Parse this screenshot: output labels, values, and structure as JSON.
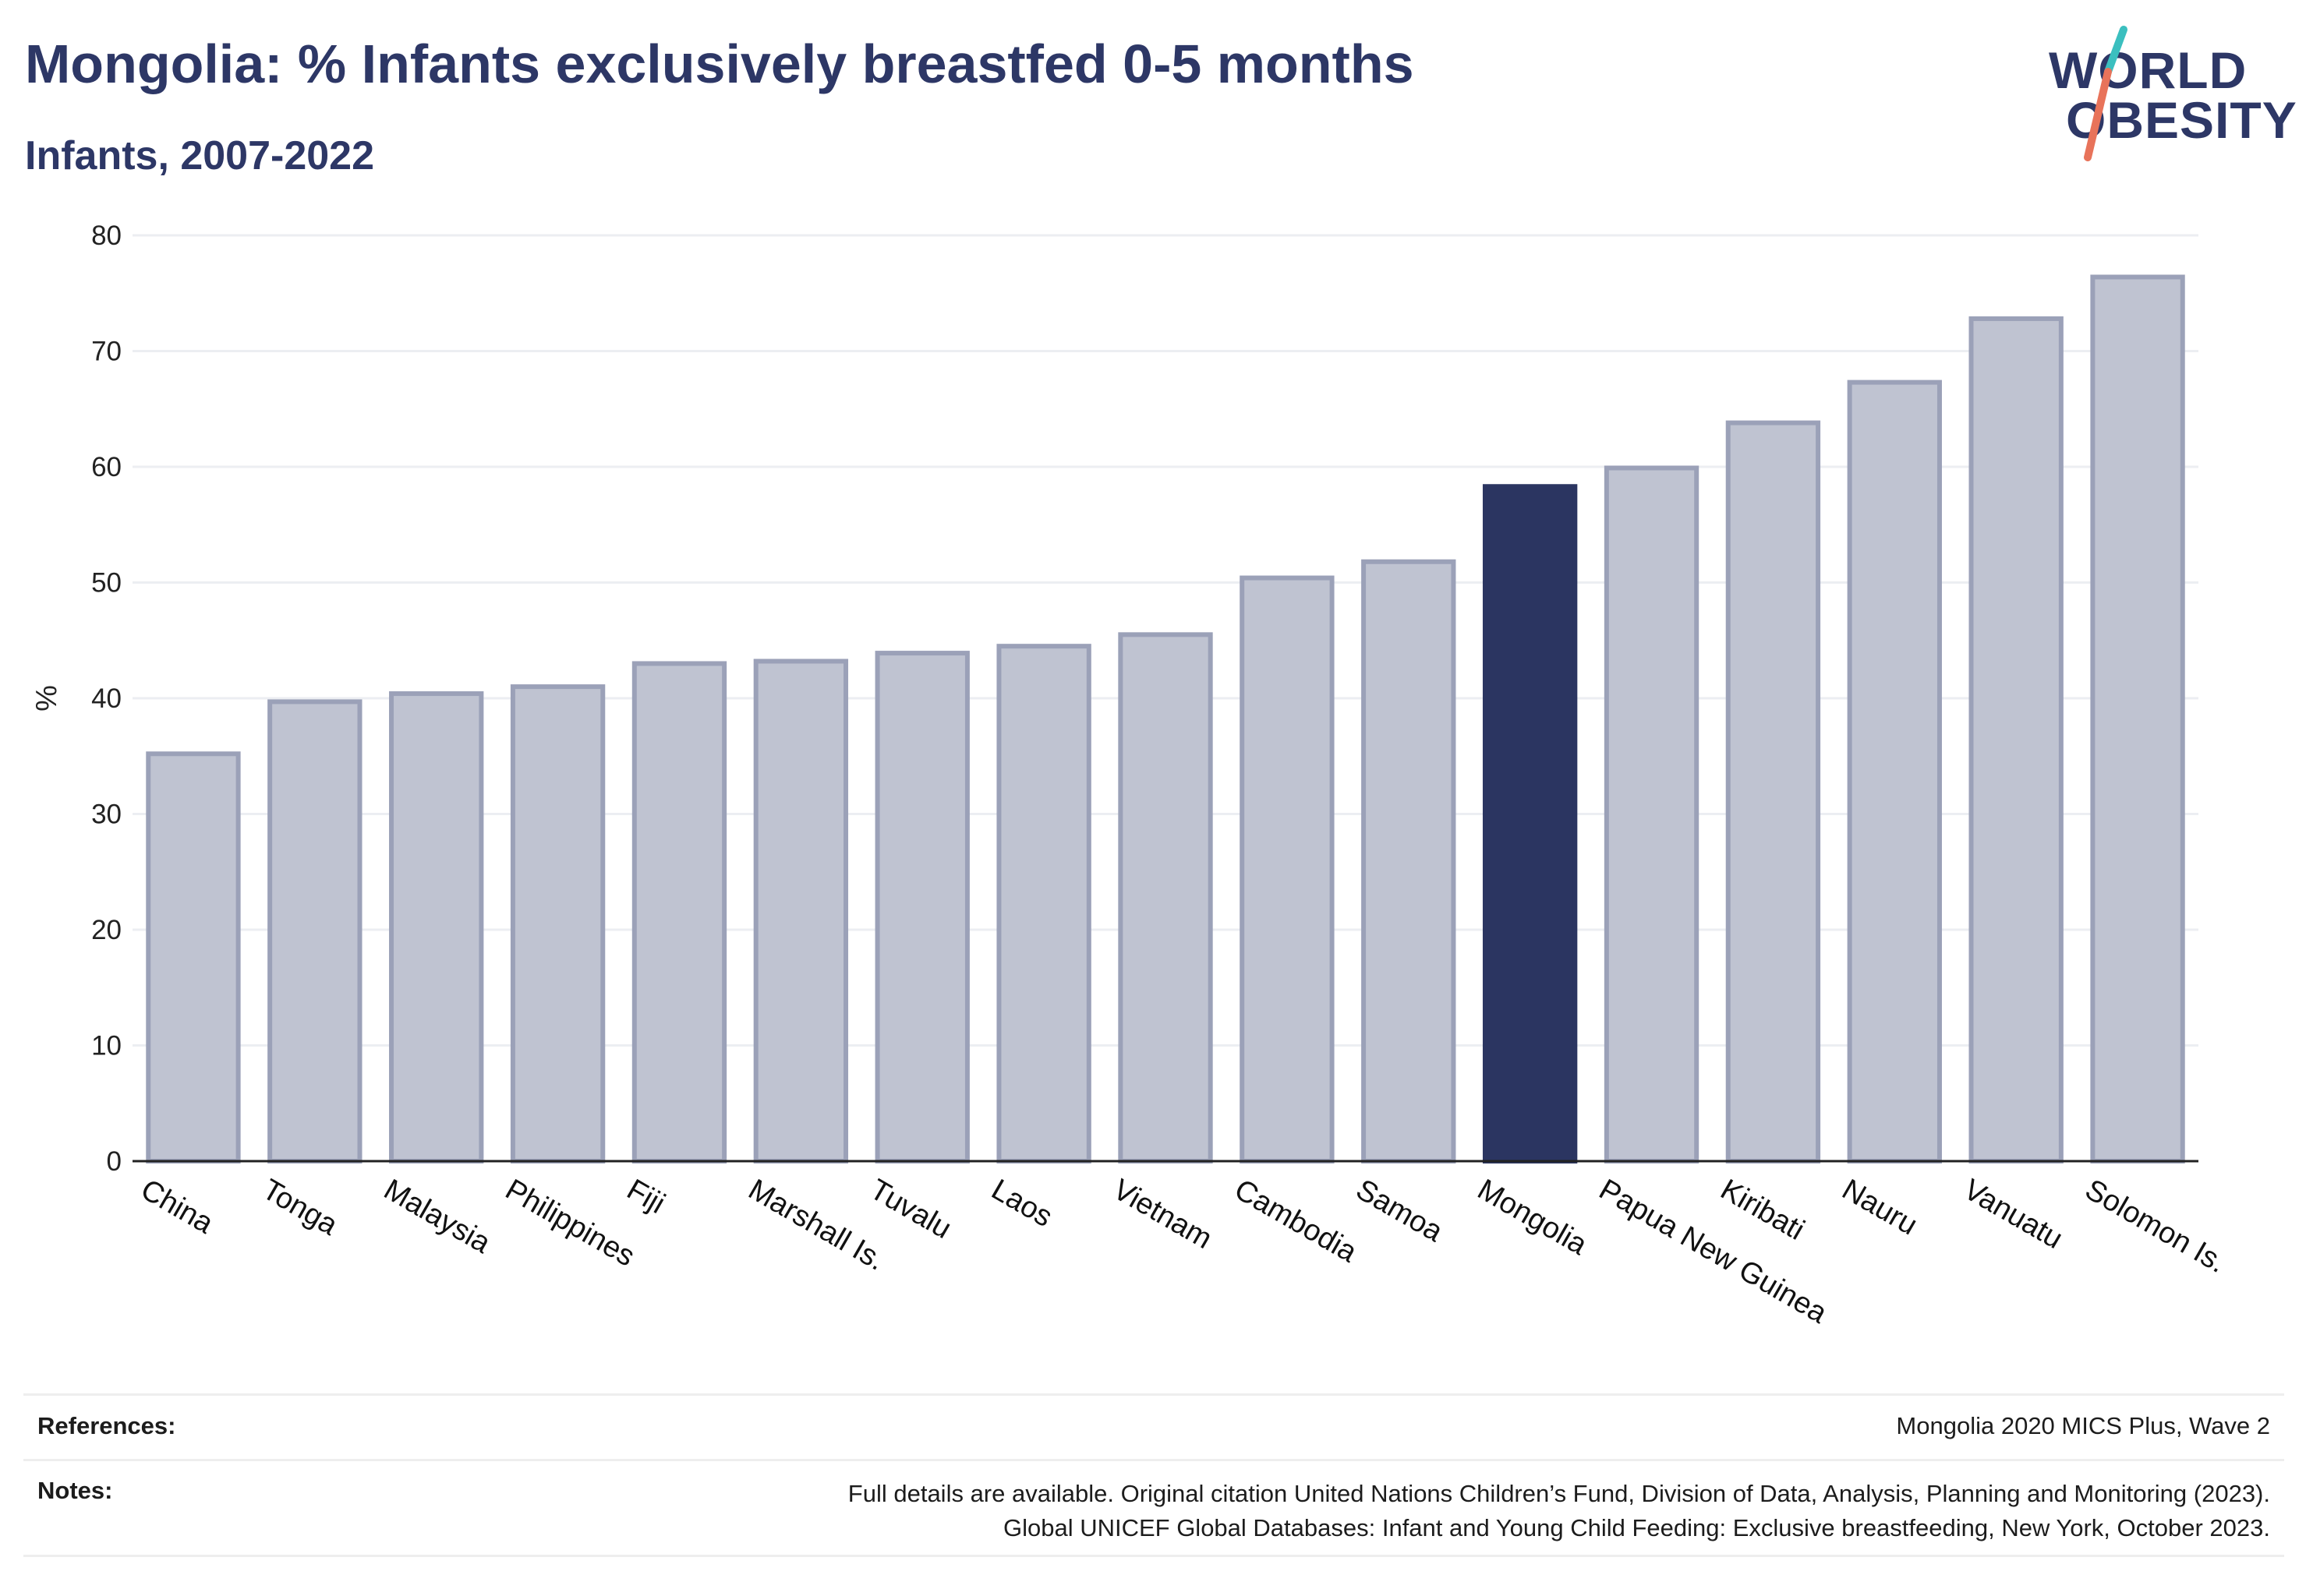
{
  "header": {
    "title": "Mongolia: % Infants exclusively breastfed 0-5 months",
    "subtitle": "Infants, 2007-2022"
  },
  "logo": {
    "line1": "WORLD",
    "line2": "OBESITY"
  },
  "colors": {
    "highlight": "#2b3561",
    "bar": "#bfc3d1",
    "bar_border": "#9ba1b8",
    "text": "#2d3766",
    "logo_slash_teal": "#3bbfbf",
    "logo_slash_coral": "#e8735a"
  },
  "chart_data": {
    "type": "bar",
    "categories": [
      "China",
      "Tonga",
      "Malaysia",
      "Philippines",
      "Fiji",
      "Marshall Is.",
      "Tuvalu",
      "Laos",
      "Vietnam",
      "Cambodia",
      "Samoa",
      "Mongolia",
      "Papua New Guinea",
      "Kiribati",
      "Nauru",
      "Vanuatu",
      "Solomon Is."
    ],
    "values": [
      35.2,
      39.7,
      40.4,
      41.0,
      43.0,
      43.2,
      43.9,
      44.5,
      45.5,
      50.4,
      51.8,
      58.3,
      59.9,
      63.8,
      67.3,
      72.8,
      76.4
    ],
    "highlight": "Mongolia",
    "ylabel": "%",
    "xlabel": "",
    "ylim": [
      0,
      80
    ],
    "yticks": [
      0,
      10,
      20,
      30,
      40,
      50,
      60,
      70,
      80
    ],
    "grid": true,
    "legend": "none"
  },
  "footer": {
    "references_label": "References:",
    "references_text": "Mongolia 2020 MICS Plus, Wave 2",
    "notes_label": "Notes:",
    "notes_line1": "Full details are available. Original citation United Nations Children’s Fund, Division of Data, Analysis, Planning and Monitoring (2023).",
    "notes_line2": "Global UNICEF Global Databases: Infant and Young Child Feeding: Exclusive breastfeeding, New York, October 2023."
  }
}
